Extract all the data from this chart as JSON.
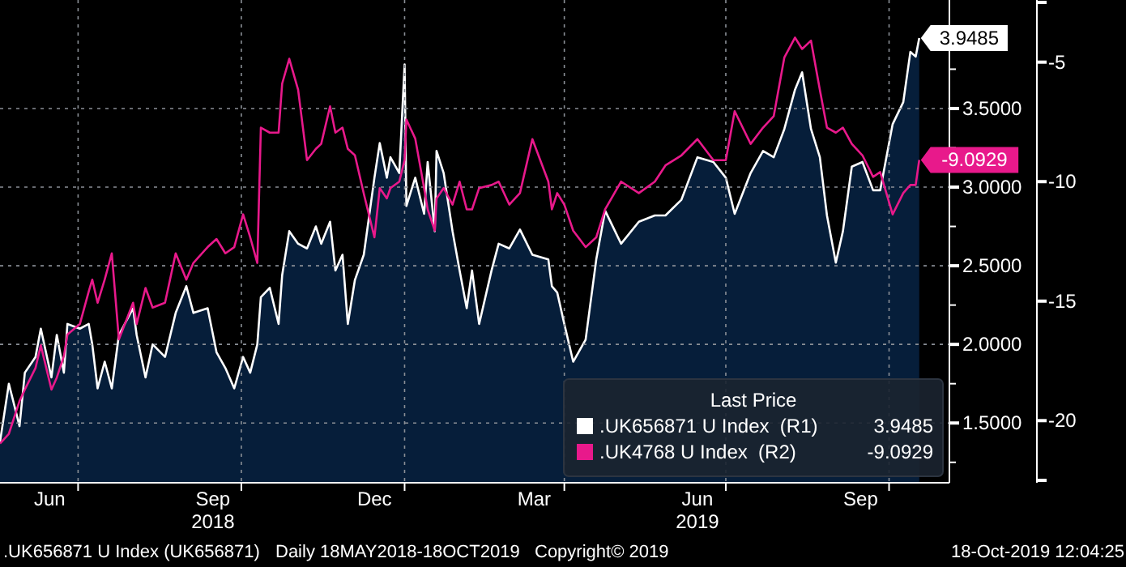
{
  "chart_data": {
    "type": "area",
    "legend_title": "Last Price",
    "legend": "bottom right",
    "grid": true,
    "x": [
      "2018-05-18",
      "2018-05-23",
      "2018-05-29",
      "2018-06-01",
      "2018-06-07",
      "2018-06-10",
      "2018-06-16",
      "2018-06-19",
      "2018-06-23",
      "2018-06-25",
      "2018-07-02",
      "2018-07-07",
      "2018-07-09",
      "2018-07-12",
      "2018-07-16",
      "2018-07-20",
      "2018-07-24",
      "2018-08-01",
      "2018-08-03",
      "2018-08-08",
      "2018-08-12",
      "2018-08-19",
      "2018-08-25",
      "2018-08-31",
      "2018-09-04",
      "2018-09-12",
      "2018-09-17",
      "2018-09-22",
      "2018-09-27",
      "2018-10-02",
      "2018-10-06",
      "2018-10-10",
      "2018-10-12",
      "2018-10-17",
      "2018-10-22",
      "2018-10-24",
      "2018-10-28",
      "2018-11-02",
      "2018-11-07",
      "2018-11-12",
      "2018-11-15",
      "2018-11-20",
      "2018-11-23",
      "2018-11-27",
      "2018-11-30",
      "2018-12-04",
      "2018-12-09",
      "2018-12-15",
      "2018-12-18",
      "2018-12-22",
      "2018-12-24",
      "2018-12-29",
      "2019-01-01",
      "2019-01-02",
      "2019-01-07",
      "2019-01-12",
      "2019-01-14",
      "2019-01-18",
      "2019-01-19",
      "2019-01-23",
      "2019-01-28",
      "2019-02-01",
      "2019-02-05",
      "2019-02-08",
      "2019-02-12",
      "2019-02-19",
      "2019-02-23",
      "2019-03-01",
      "2019-03-07",
      "2019-03-14",
      "2019-03-23",
      "2019-03-25",
      "2019-03-28",
      "2019-04-01",
      "2019-04-06",
      "2019-04-13",
      "2019-04-19",
      "2019-04-24",
      "2019-05-03",
      "2019-05-13",
      "2019-05-22",
      "2019-05-28",
      "2019-06-06",
      "2019-06-15",
      "2019-06-24",
      "2019-07-01",
      "2019-07-06",
      "2019-07-15",
      "2019-07-22",
      "2019-07-28",
      "2019-08-03",
      "2019-08-09",
      "2019-08-13",
      "2019-08-18",
      "2019-08-23",
      "2019-08-27",
      "2019-09-01",
      "2019-09-05",
      "2019-09-10",
      "2019-09-16",
      "2019-09-22",
      "2019-09-26",
      "2019-10-03",
      "2019-10-09",
      "2019-10-13",
      "2019-10-16",
      "2019-10-18"
    ],
    "series": [
      {
        "name": ".UK656871 U Index  (R1)",
        "color": "#ffffff",
        "values": [
          1.38,
          1.75,
          1.48,
          1.82,
          1.92,
          2.1,
          1.79,
          2.06,
          1.82,
          2.13,
          2.1,
          2.13,
          2.0,
          1.72,
          1.89,
          1.72,
          2.06,
          2.23,
          2.06,
          1.79,
          2.0,
          1.92,
          2.2,
          2.37,
          2.2,
          2.23,
          1.95,
          1.85,
          1.72,
          1.92,
          1.82,
          2.0,
          2.3,
          2.36,
          2.13,
          2.44,
          2.72,
          2.64,
          2.61,
          2.75,
          2.64,
          2.78,
          2.47,
          2.57,
          2.13,
          2.41,
          2.57,
          3.06,
          3.28,
          3.06,
          3.19,
          3.09,
          3.78,
          2.88,
          3.06,
          2.83,
          3.16,
          2.72,
          3.23,
          3.09,
          2.72,
          2.47,
          2.23,
          2.47,
          2.13,
          2.47,
          2.64,
          2.61,
          2.73,
          2.57,
          2.54,
          2.37,
          2.33,
          2.13,
          1.89,
          2.03,
          2.54,
          2.85,
          2.64,
          2.78,
          2.82,
          2.82,
          2.92,
          3.19,
          3.16,
          3.06,
          2.83,
          3.09,
          3.23,
          3.19,
          3.37,
          3.62,
          3.73,
          3.37,
          3.19,
          2.82,
          2.52,
          2.72,
          3.13,
          3.16,
          2.98,
          2.98,
          3.4,
          3.54,
          3.86,
          3.83,
          3.9485
        ],
        "value_labels": [
          null,
          null,
          null,
          null,
          null,
          null,
          null,
          null,
          null,
          null,
          null,
          null,
          null,
          null,
          null,
          null,
          null,
          null,
          null,
          null,
          null,
          null,
          null,
          null,
          null,
          null,
          null,
          null,
          null,
          null,
          null,
          null,
          null,
          null,
          null,
          null,
          null,
          null,
          null,
          null,
          null,
          null,
          null,
          null,
          null,
          null,
          null,
          null,
          null,
          null,
          null,
          null,
          null,
          null,
          null,
          null,
          null,
          null,
          null,
          null,
          null,
          null,
          null,
          null,
          null,
          null,
          null,
          null,
          null,
          null,
          null,
          null,
          null,
          null,
          null,
          null,
          null,
          null,
          null,
          null,
          null,
          null,
          null,
          null,
          null,
          null,
          null,
          null,
          null,
          null,
          null,
          null,
          null,
          null,
          null,
          null,
          null,
          null,
          null,
          null,
          null,
          null,
          null,
          null,
          null,
          null,
          "3.9485"
        ]
      },
      {
        "name": ".UK4768 U Index  (R2)",
        "type": "line",
        "axis": "y2",
        "color": "#e8198b",
        "values": [
          -20.96,
          -20.55,
          -19.18,
          -18.7,
          -17.8,
          -16.85,
          -18.7,
          -18.2,
          -17.3,
          -16.4,
          -15.96,
          -14.6,
          -14.1,
          -15.07,
          -14.1,
          -13.0,
          -16.6,
          -15.07,
          -15.96,
          -14.45,
          -15.27,
          -15.07,
          -13.0,
          -14.1,
          -13.4,
          -12.74,
          -12.4,
          -13.0,
          -12.74,
          -11.37,
          -12.33,
          -13.4,
          -7.74,
          -7.95,
          -7.95,
          -5.9,
          -4.86,
          -6.16,
          -9.1,
          -8.63,
          -8.42,
          -6.85,
          -7.95,
          -7.74,
          -8.63,
          -8.9,
          -10.5,
          -12.33,
          -10.27,
          -10.7,
          -10.27,
          -10.0,
          -9.1,
          -7.4,
          -8.2,
          -10.27,
          -11.16,
          -12.05,
          -10.7,
          -10.27,
          -10.96,
          -10.0,
          -11.16,
          -11.16,
          -10.27,
          -10.14,
          -10.0,
          -10.96,
          -10.48,
          -8.22,
          -10.0,
          -11.16,
          -10.48,
          -10.96,
          -12.05,
          -12.74,
          -12.33,
          -11.16,
          -10.0,
          -10.48,
          -10.0,
          -9.32,
          -8.9,
          -8.22,
          -9.1,
          -9.1,
          -7.05,
          -8.42,
          -7.74,
          -7.26,
          -4.8,
          -3.97,
          -4.45,
          -4.1,
          -6.16,
          -7.74,
          -7.95,
          -7.74,
          -8.42,
          -8.9,
          -9.8,
          -9.6,
          -11.37,
          -10.48,
          -10.14,
          -10.14,
          -9.0929
        ],
        "value_labels": [
          null,
          null,
          null,
          null,
          null,
          null,
          null,
          null,
          null,
          null,
          null,
          null,
          null,
          null,
          null,
          null,
          null,
          null,
          null,
          null,
          null,
          null,
          null,
          null,
          null,
          null,
          null,
          null,
          null,
          null,
          null,
          null,
          null,
          null,
          null,
          null,
          null,
          null,
          null,
          null,
          null,
          null,
          null,
          null,
          null,
          null,
          null,
          null,
          null,
          null,
          null,
          null,
          null,
          null,
          null,
          null,
          null,
          null,
          null,
          null,
          null,
          null,
          null,
          null,
          null,
          null,
          null,
          null,
          null,
          null,
          null,
          null,
          null,
          null,
          null,
          null,
          null,
          null,
          null,
          null,
          null,
          null,
          null,
          null,
          null,
          null,
          null,
          null,
          null,
          null,
          null,
          null,
          null,
          null,
          null,
          null,
          null,
          null,
          null,
          null,
          null,
          null,
          null,
          null,
          null,
          null,
          "-9.0929"
        ]
      }
    ],
    "xlim": [
      "2018-05-18",
      "2019-11-04"
    ],
    "xticks": [
      {
        "value": "2018-06-15",
        "label": "Jun"
      },
      {
        "value": "2018-07-01",
        "label": null
      },
      {
        "value": "2018-09-15",
        "label": "Sep\n2018"
      },
      {
        "value": "2018-10-01",
        "label": null
      },
      {
        "value": "2018-12-15",
        "label": "Dec"
      },
      {
        "value": "2019-01-01",
        "label": null
      },
      {
        "value": "2019-03-15",
        "label": "Mar"
      },
      {
        "value": "2019-04-01",
        "label": null
      },
      {
        "value": "2019-06-15",
        "label": "Jun\n2019"
      },
      {
        "value": "2019-07-01",
        "label": null
      },
      {
        "value": "2019-09-15",
        "label": "Sep"
      },
      {
        "value": "2019-10-01",
        "label": null
      }
    ],
    "ylim": [
      1.12,
      4.19
    ],
    "yticks": [
      {
        "value": 1.25,
        "label": null
      },
      {
        "value": 1.5,
        "label": "1.5000"
      },
      {
        "value": 1.75,
        "label": null
      },
      {
        "value": 2,
        "label": "2.0000"
      },
      {
        "value": 2.25,
        "label": null
      },
      {
        "value": 2.5,
        "label": "2.5000"
      },
      {
        "value": 2.75,
        "label": null
      },
      {
        "value": 3,
        "label": "3.0000"
      },
      {
        "value": 3.25,
        "label": null
      },
      {
        "value": 3.5,
        "label": "3.5000"
      },
      {
        "value": 3.75,
        "label": null
      }
    ],
    "y2lim": [
      -22.6,
      -2.4
    ],
    "y2ticks": [
      {
        "value": -22.5,
        "label": null
      },
      -20,
      -15,
      -10,
      -5,
      {
        "value": -2.5,
        "label": null
      }
    ],
    "annotations": [
      ".UK656871 U Index (UK656871)",
      "Daily 18MAY2018-18OCT2019",
      "Copyright© 2019",
      "18-Oct-2019 12:04:25"
    ]
  }
}
